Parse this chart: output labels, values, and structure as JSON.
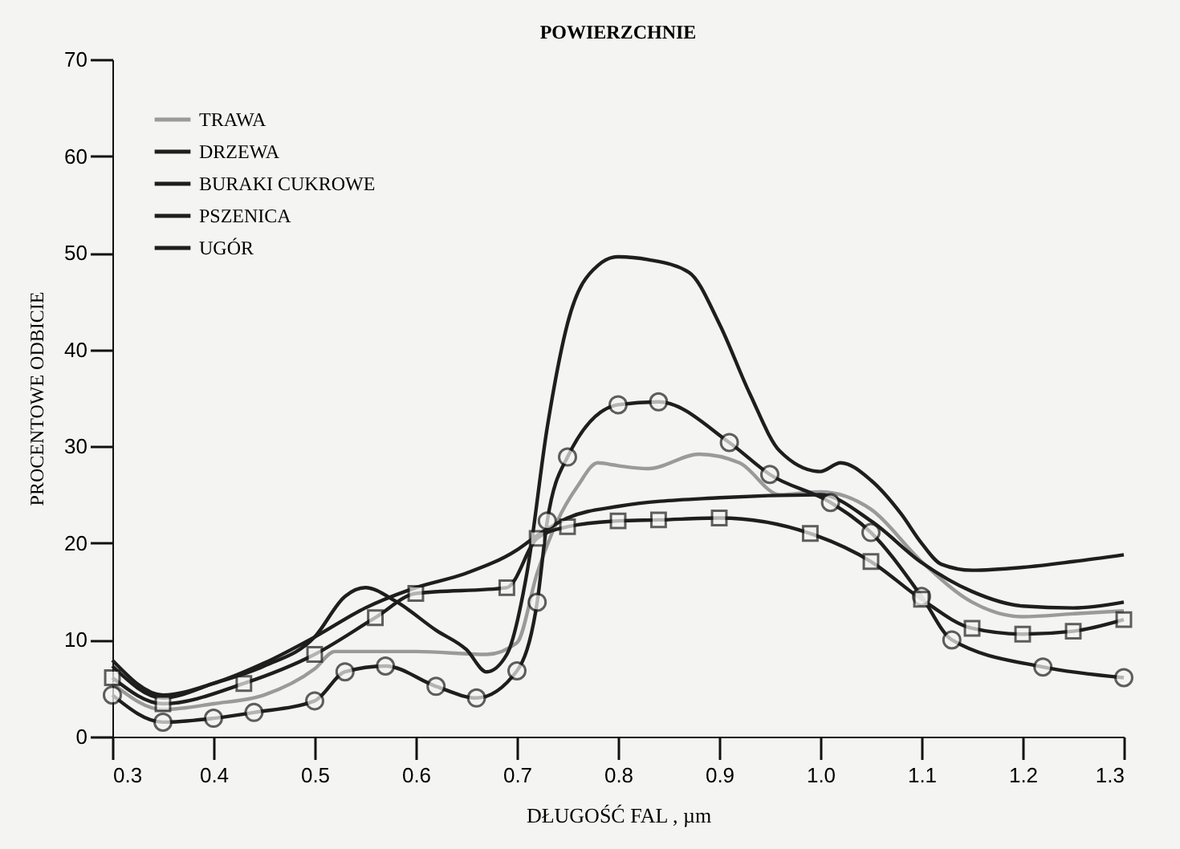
{
  "chart_data": {
    "type": "line",
    "title": "POWIERZCHNIE",
    "xlabel": "DŁUGOŚĆ FAL , µm",
    "ylabel": "PROCENTOWE ODBICIE",
    "xlim": [
      0.3,
      1.3
    ],
    "xticks": [
      0.3,
      0.4,
      0.5,
      0.6,
      0.7,
      0.8,
      0.9,
      {
        "value": 1,
        "label": "1.0"
      },
      1.1,
      1.2,
      1.3
    ],
    "ylim": [
      0,
      70
    ],
    "yticks": [
      0,
      10,
      20,
      30,
      40,
      50,
      60,
      70
    ],
    "grid": false,
    "legend": "top left",
    "series": [
      {
        "name": "TRAWA",
        "color": "#9a9a9a",
        "x": [
          0.3,
          0.35,
          0.4,
          0.45,
          0.5,
          0.52,
          0.6,
          0.67,
          0.7,
          0.72,
          0.74,
          0.76,
          0.78,
          0.8,
          0.83,
          0.88,
          0.92,
          0.96,
          1.0,
          1.05,
          1.1,
          1.15,
          1.2,
          1.25,
          1.3
        ],
        "values": [
          5.5,
          2.8,
          3.4,
          4.3,
          7,
          8.8,
          8.8,
          8.5,
          9.7,
          16.9,
          22.3,
          25.9,
          28.3,
          28,
          27.7,
          29.2,
          28.3,
          25,
          25.3,
          23.5,
          18.1,
          13.9,
          12.4,
          12.7,
          13
        ]
      },
      {
        "name": "DRZEWA",
        "color": "#1e1e1e",
        "marker": "circle",
        "x": [
          0.3,
          0.35,
          0.4,
          0.44,
          0.5,
          0.53,
          0.57,
          0.62,
          0.66,
          0.7,
          0.72,
          0.73,
          0.75,
          0.8,
          0.84,
          0.91,
          0.95,
          1.01,
          1.05,
          1.1,
          1.13,
          1.22,
          1.3
        ],
        "values": [
          4.3,
          1.5,
          1.9,
          2.5,
          3.7,
          6.7,
          7.3,
          5.2,
          4,
          6.8,
          13.9,
          22.3,
          28.9,
          34.3,
          34.6,
          30.4,
          27.1,
          24.2,
          21.1,
          14.5,
          10,
          7.2,
          6.1
        ]
      },
      {
        "name": "BURAKI CUKROWE",
        "color": "#1e1e1e",
        "x": [
          0.3,
          0.35,
          0.4,
          0.45,
          0.5,
          0.53,
          0.55,
          0.58,
          0.62,
          0.65,
          0.67,
          0.69,
          0.71,
          0.73,
          0.75,
          0.78,
          0.8,
          0.83,
          0.87,
          0.9,
          0.93,
          0.96,
          1.0,
          1.02,
          1.05,
          1.08,
          1.1,
          1.12,
          1.15,
          1.2,
          1.25,
          1.3
        ],
        "values": [
          7.3,
          4,
          5.5,
          7.3,
          10.3,
          14.5,
          15.4,
          14,
          11,
          9,
          6.7,
          8.5,
          17,
          32,
          42.7,
          48.7,
          49.6,
          49.3,
          48,
          42.7,
          35.5,
          29.5,
          27.4,
          28.3,
          26.5,
          23,
          20,
          17.8,
          17.2,
          17.5,
          18.1,
          18.8
        ]
      },
      {
        "name": "PSZENICA",
        "color": "#1e1e1e",
        "marker": "square",
        "x": [
          0.3,
          0.35,
          0.43,
          0.5,
          0.56,
          0.6,
          0.69,
          0.72,
          0.75,
          0.8,
          0.84,
          0.9,
          0.99,
          1.05,
          1.1,
          1.15,
          1.2,
          1.25,
          1.3
        ],
        "values": [
          6.1,
          3.4,
          5.5,
          8.5,
          12.3,
          14.8,
          15.4,
          20.5,
          21.7,
          22.3,
          22.4,
          22.6,
          21,
          18.1,
          14.2,
          11.2,
          10.6,
          10.9,
          12.1
        ]
      },
      {
        "name": "UGÓR",
        "color": "#1e1e1e",
        "x": [
          0.3,
          0.35,
          0.4,
          0.45,
          0.5,
          0.55,
          0.6,
          0.65,
          0.7,
          0.72,
          0.75,
          0.8,
          0.9,
          1.0,
          1.05,
          1.1,
          1.15,
          1.2,
          1.25,
          1.3
        ],
        "values": [
          7.9,
          4.3,
          5.5,
          7.6,
          10.3,
          13.3,
          15.4,
          16.9,
          19.3,
          20.8,
          22.6,
          23.8,
          24.7,
          25,
          22.3,
          18,
          15,
          13.5,
          13.3,
          13.9
        ]
      }
    ]
  }
}
